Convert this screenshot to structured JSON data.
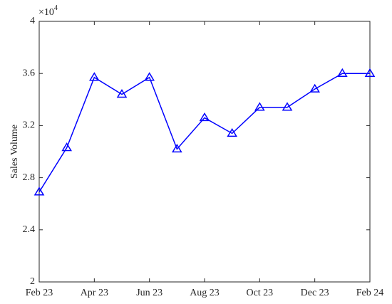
{
  "chart_data": {
    "type": "line",
    "y_label": "Sales Volume",
    "y_multiplier": {
      "base": "×10",
      "exponent": "4"
    },
    "categories": [
      "Feb 23",
      null,
      "Apr 23",
      null,
      "Jun 23",
      null,
      "Aug 23",
      null,
      "Oct 23",
      null,
      "Dec 23",
      null,
      "Feb 24"
    ],
    "series": [
      {
        "color": "#0000ff",
        "marker": "triangle",
        "values": [
          2.69,
          3.03,
          3.57,
          3.44,
          3.57,
          3.02,
          3.26,
          3.14,
          3.34,
          3.34,
          3.48,
          3.6,
          3.6
        ]
      }
    ],
    "ylim": [
      2,
      4
    ],
    "yticks": [
      2,
      2.4,
      2.8,
      3.2,
      3.6,
      4
    ],
    "grid": false
  }
}
